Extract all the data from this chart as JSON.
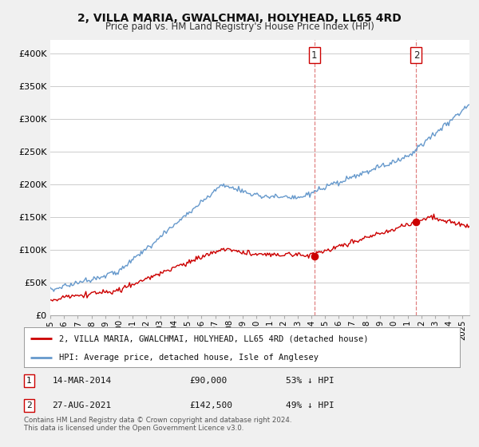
{
  "title": "2, VILLA MARIA, GWALCHMAI, HOLYHEAD, LL65 4RD",
  "subtitle": "Price paid vs. HM Land Registry's House Price Index (HPI)",
  "red_label": "2, VILLA MARIA, GWALCHMAI, HOLYHEAD, LL65 4RD (detached house)",
  "blue_label": "HPI: Average price, detached house, Isle of Anglesey",
  "transaction1": {
    "label": "1",
    "date": "14-MAR-2014",
    "price": "£90,000",
    "pct": "53% ↓ HPI"
  },
  "transaction2": {
    "label": "2",
    "date": "27-AUG-2021",
    "price": "£142,500",
    "pct": "49% ↓ HPI"
  },
  "copyright": "Contains HM Land Registry data © Crown copyright and database right 2024.\nThis data is licensed under the Open Government Licence v3.0.",
  "ylim": [
    0,
    420000
  ],
  "yticks": [
    0,
    50000,
    100000,
    150000,
    200000,
    250000,
    300000,
    350000,
    400000
  ],
  "background_color": "#f0f0f0",
  "plot_background": "#ffffff",
  "red_color": "#cc0000",
  "blue_color": "#6699cc",
  "vline_color": "#cc0000",
  "grid_color": "#cccccc"
}
